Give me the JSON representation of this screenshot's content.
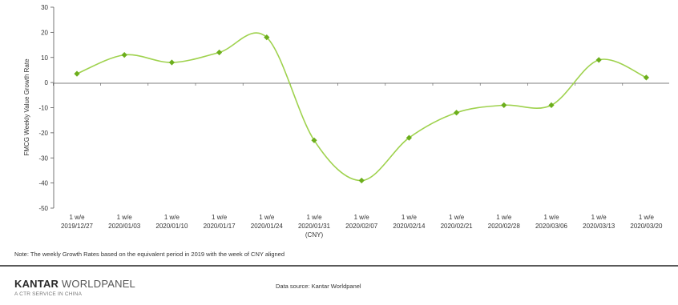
{
  "chart_data": {
    "type": "line",
    "title": "",
    "ylabel": "FMCG Weekly  Value Growth Rate",
    "xlabel": "",
    "ylim": [
      -50,
      30
    ],
    "yticks": [
      30,
      20,
      10,
      0,
      -10,
      -20,
      -30,
      -40,
      -50
    ],
    "categories": [
      [
        "1 w/e",
        "2019/12/27"
      ],
      [
        "1 w/e",
        "2020/01/03"
      ],
      [
        "1 w/e",
        "2020/01/10"
      ],
      [
        "1 w/e",
        "2020/01/17"
      ],
      [
        "1 w/e",
        "2020/01/24"
      ],
      [
        "1 w/e",
        "2020/01/31",
        "(CNY)"
      ],
      [
        "1 w/e",
        "2020/02/07"
      ],
      [
        "1 w/e",
        "2020/02/14"
      ],
      [
        "1 w/e",
        "2020/02/21"
      ],
      [
        "1 w/e",
        "2020/02/28"
      ],
      [
        "1 w/e",
        "2020/03/06"
      ],
      [
        "1 w/e",
        "2020/03/13"
      ],
      [
        "1 w/e",
        "2020/03/20"
      ]
    ],
    "series": [
      {
        "values": [
          3.5,
          11,
          8,
          12,
          18,
          -23,
          -39,
          -22,
          -12,
          -9,
          -9,
          9,
          2
        ]
      }
    ],
    "legend": "none",
    "grid": false,
    "line_color": "#9fd24e",
    "marker_color": "#6cae1c"
  },
  "note": "Note: The weekly Growth Rates based on the equivalent period in 2019 with the week of CNY aligned",
  "footer": {
    "brand_bold": "KANTAR",
    "brand_rest": " WORLDPANEL",
    "brand_sub": "A CTR SERVICE IN CHINA",
    "source": "Data source: Kantar Worldpanel"
  }
}
